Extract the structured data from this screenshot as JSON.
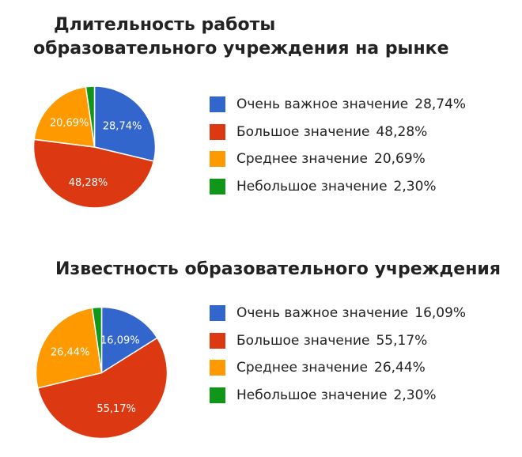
{
  "chart_data": [
    {
      "type": "pie",
      "title": "Длительность работы образовательного учреждения на рынке",
      "slices": [
        {
          "label": "Очень важное значение",
          "value": 28.74,
          "text": "28,74%",
          "color": "#3366cc"
        },
        {
          "label": "Большое значение",
          "value": 48.28,
          "text": "48,28%",
          "color": "#dc3912"
        },
        {
          "label": "Среднее значение",
          "value": 20.69,
          "text": "20,69%",
          "color": "#ff9900"
        },
        {
          "label": "Небольшое значение",
          "value": 2.3,
          "text": "2,30%",
          "color": "#109618"
        }
      ]
    },
    {
      "type": "pie",
      "title": "Известность образовательного учреждения",
      "slices": [
        {
          "label": "Очень важное значение",
          "value": 16.09,
          "text": "16,09%",
          "color": "#3366cc"
        },
        {
          "label": "Большое значение",
          "value": 55.17,
          "text": "55,17%",
          "color": "#dc3912"
        },
        {
          "label": "Среднее значение",
          "value": 26.44,
          "text": "26,44%",
          "color": "#ff9900"
        },
        {
          "label": "Небольшое значение",
          "value": 2.3,
          "text": "2,30%",
          "color": "#109618"
        }
      ]
    }
  ]
}
